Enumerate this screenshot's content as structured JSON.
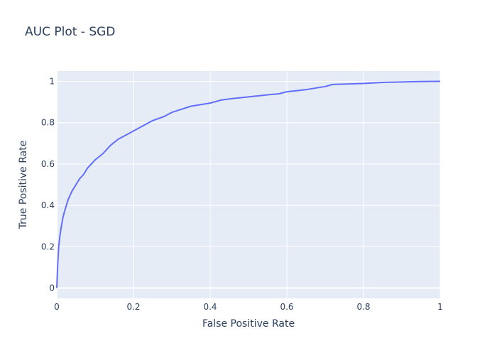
{
  "chart_data": {
    "type": "line",
    "title": "AUC Plot - SGD",
    "xlabel": "False Positive Rate",
    "ylabel": "True Positive Rate",
    "xlim": [
      0,
      1
    ],
    "ylim": [
      -0.05,
      1.05
    ],
    "grid": true,
    "colors": {
      "plot_background": "#e5ecf6",
      "grid": "#ffffff",
      "line": "#636efa",
      "text": "#2a3f5f"
    },
    "x_ticks": [
      {
        "value": 0,
        "label": "0"
      },
      {
        "value": 0.2,
        "label": "0.2"
      },
      {
        "value": 0.4,
        "label": "0.4"
      },
      {
        "value": 0.6,
        "label": "0.6"
      },
      {
        "value": 0.8,
        "label": "0.8"
      },
      {
        "value": 1,
        "label": "1"
      }
    ],
    "y_ticks": [
      {
        "value": 0,
        "label": "0"
      },
      {
        "value": 0.2,
        "label": "0.2"
      },
      {
        "value": 0.4,
        "label": "0.4"
      },
      {
        "value": 0.6,
        "label": "0.6"
      },
      {
        "value": 0.8,
        "label": "0.8"
      },
      {
        "value": 1,
        "label": "1"
      }
    ],
    "series": [
      {
        "x": [
          0.0,
          0.002,
          0.005,
          0.008,
          0.012,
          0.016,
          0.02,
          0.025,
          0.03,
          0.035,
          0.04,
          0.05,
          0.06,
          0.07,
          0.08,
          0.09,
          0.1,
          0.12,
          0.14,
          0.16,
          0.18,
          0.2,
          0.22,
          0.25,
          0.28,
          0.3,
          0.35,
          0.4,
          0.43,
          0.45,
          0.5,
          0.55,
          0.58,
          0.6,
          0.65,
          0.7,
          0.72,
          0.8,
          0.85,
          0.9,
          0.95,
          1.0
        ],
        "y": [
          0.0,
          0.1,
          0.2,
          0.25,
          0.3,
          0.34,
          0.37,
          0.4,
          0.43,
          0.45,
          0.47,
          0.5,
          0.53,
          0.55,
          0.58,
          0.6,
          0.62,
          0.65,
          0.69,
          0.72,
          0.74,
          0.76,
          0.78,
          0.81,
          0.83,
          0.85,
          0.88,
          0.895,
          0.91,
          0.915,
          0.925,
          0.935,
          0.94,
          0.95,
          0.96,
          0.975,
          0.985,
          0.99,
          0.995,
          0.997,
          0.999,
          1.0
        ]
      }
    ]
  }
}
